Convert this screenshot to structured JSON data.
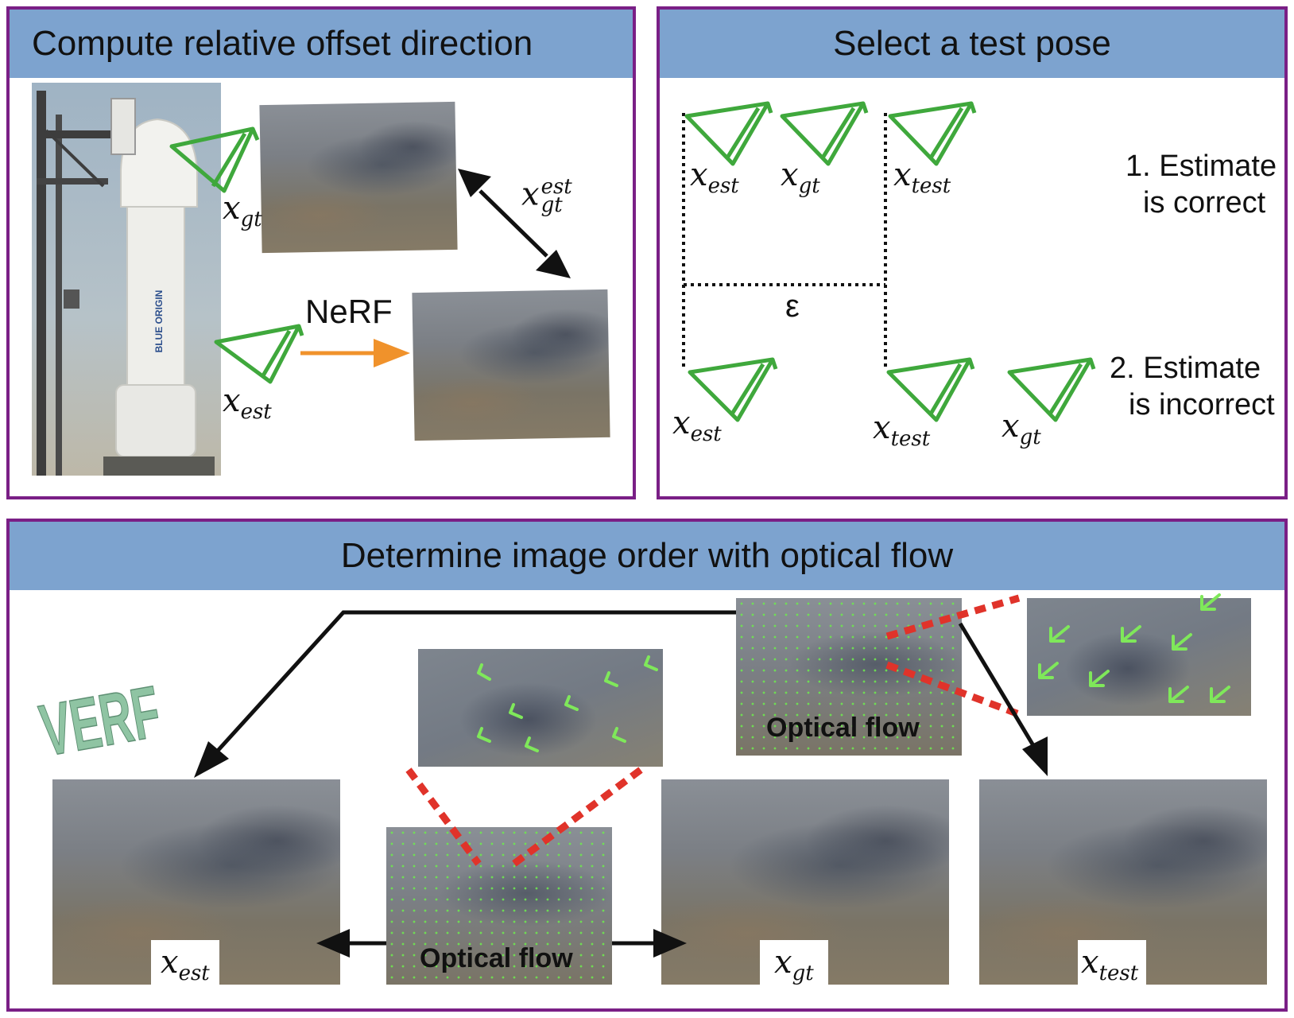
{
  "panels": {
    "offset": {
      "title": "Compute relative offset direction"
    },
    "test_pose": {
      "title": "Select a test pose"
    },
    "flow": {
      "title": "Determine image order with optical flow"
    }
  },
  "math": {
    "x": "x",
    "gt": "gt",
    "est": "est",
    "test": "test"
  },
  "labels": {
    "nerf": "NeRF",
    "epsilon": "ε",
    "case1_line1": "1. Estimate",
    "case1_line2": "is correct",
    "case2_line1": "2. Estimate",
    "case2_line2": "is incorrect",
    "optical_flow": "Optical flow",
    "rocket_logo": "BLUE ORIGIN",
    "vf_logo": "VERF"
  },
  "icons": {
    "camera": "camera-frustum-icon",
    "arrow": "arrow-icon"
  },
  "colors": {
    "panel_border": "#7a1f86",
    "header_bg": "#7da3cf",
    "frustum": "#3fa83c",
    "nerf_arrow": "#f0922b",
    "zoom_line": "#e0332a",
    "flow_vector": "#7fe85a"
  }
}
